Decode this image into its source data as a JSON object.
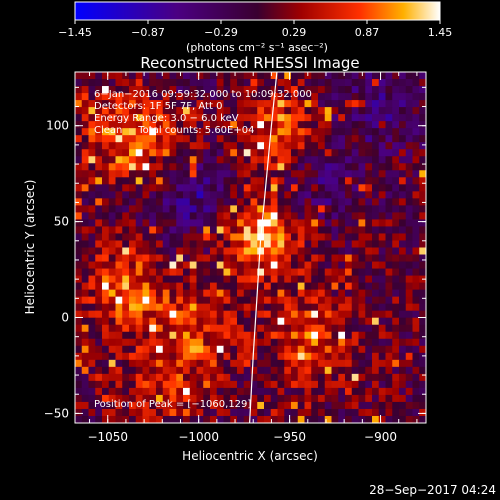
{
  "chart_data": {
    "type": "heatmap",
    "title": "Reconstructed RHESSI Image",
    "xlabel": "Heliocentric X (arcsec)",
    "ylabel": "Heliocentric Y (arcsec)",
    "xlim": [
      -1068,
      -875
    ],
    "ylim": [
      -55,
      128
    ],
    "x_ticks": [
      -1050,
      -1000,
      -950,
      -900
    ],
    "y_ticks": [
      -50,
      0,
      50,
      100
    ],
    "x_tick_labels": [
      "−1050",
      "−1000",
      "−950",
      "−900"
    ],
    "y_tick_labels": [
      "−50",
      "0",
      "50",
      "100"
    ],
    "grid": false,
    "colorbar": {
      "min": -1.45,
      "max": 1.45,
      "tick_values": [
        -1.45,
        -0.87,
        -0.29,
        0.29,
        0.87,
        1.45
      ],
      "tick_labels": [
        "−1.45",
        "−0.87",
        "−0.29",
        "0.29",
        "0.87",
        "1.45"
      ],
      "units": "(photons cm⁻² s⁻¹ asec⁻²)"
    },
    "annotations": [
      "6−Jan−2016 09:59:32.000 to 10:09:32.000",
      "Detectors: 1F 5F 7F, Att 0",
      "Energy Range: 3.0 − 6.0 keV",
      "Clean     Total counts: 5.60E+04",
      "Position of Peak = [−1060,129]"
    ],
    "limb_curve": [
      [
        -957,
        128
      ],
      [
        -960,
        100
      ],
      [
        -963,
        70
      ],
      [
        -966,
        40
      ],
      [
        -968,
        10
      ],
      [
        -970,
        -20
      ],
      [
        -972,
        -55
      ]
    ],
    "image_description_values": {
      "grid_cols": 52,
      "grid_rows": 50,
      "hotspots": [
        {
          "x": -1040,
          "y": 95,
          "value": 0.9
        },
        {
          "x": -1010,
          "y": 100,
          "value": 0.7
        },
        {
          "x": -955,
          "y": 95,
          "value": 0.85
        },
        {
          "x": -965,
          "y": 45,
          "value": 1.2
        },
        {
          "x": -1040,
          "y": 15,
          "value": 0.8
        },
        {
          "x": -1000,
          "y": -5,
          "value": 0.6
        },
        {
          "x": -940,
          "y": -10,
          "value": 0.7
        },
        {
          "x": -1020,
          "y": -35,
          "value": 0.5
        }
      ],
      "coldspots": [
        {
          "x": -1000,
          "y": 65,
          "value": -0.7
        },
        {
          "x": -940,
          "y": 70,
          "value": -0.6
        },
        {
          "x": -900,
          "y": 110,
          "value": -0.5
        },
        {
          "x": -1010,
          "y": 115,
          "value": -0.5
        }
      ]
    }
  },
  "footer": {
    "timestamp": "28−Sep−2017 04:24"
  }
}
